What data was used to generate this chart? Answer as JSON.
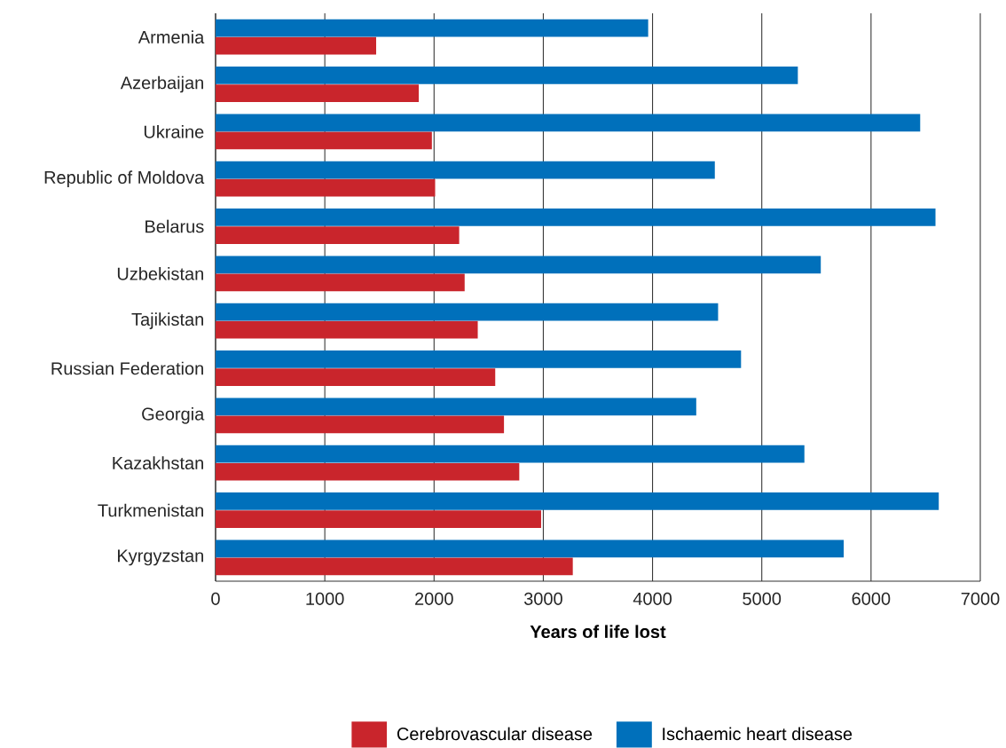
{
  "chart_data": {
    "type": "bar",
    "orientation": "horizontal",
    "xlabel": "Years of life lost",
    "categories": [
      "Armenia",
      "Azerbaijan",
      "Ukraine",
      "Republic of Moldova",
      "Belarus",
      "Uzbekistan",
      "Tajikistan",
      "Russian Federation",
      "Georgia",
      "Kazakhstan",
      "Turkmenistan",
      "Kyrgyzstan"
    ],
    "series": [
      {
        "name": "Cerebrovascular disease",
        "color": "#c9252c",
        "values": [
          1470,
          1860,
          1980,
          2010,
          2230,
          2280,
          2400,
          2560,
          2640,
          2780,
          2980,
          3270
        ]
      },
      {
        "name": "Ischaemic heart disease",
        "color": "#0070bb",
        "values": [
          3960,
          5330,
          6450,
          4570,
          6590,
          5540,
          4600,
          4810,
          4400,
          5390,
          6620,
          5750
        ]
      }
    ],
    "xlim": [
      0,
      7000
    ],
    "xticks": [
      0,
      1000,
      2000,
      3000,
      4000,
      5000,
      6000,
      7000
    ],
    "grid": "x",
    "legend": "bottom"
  }
}
